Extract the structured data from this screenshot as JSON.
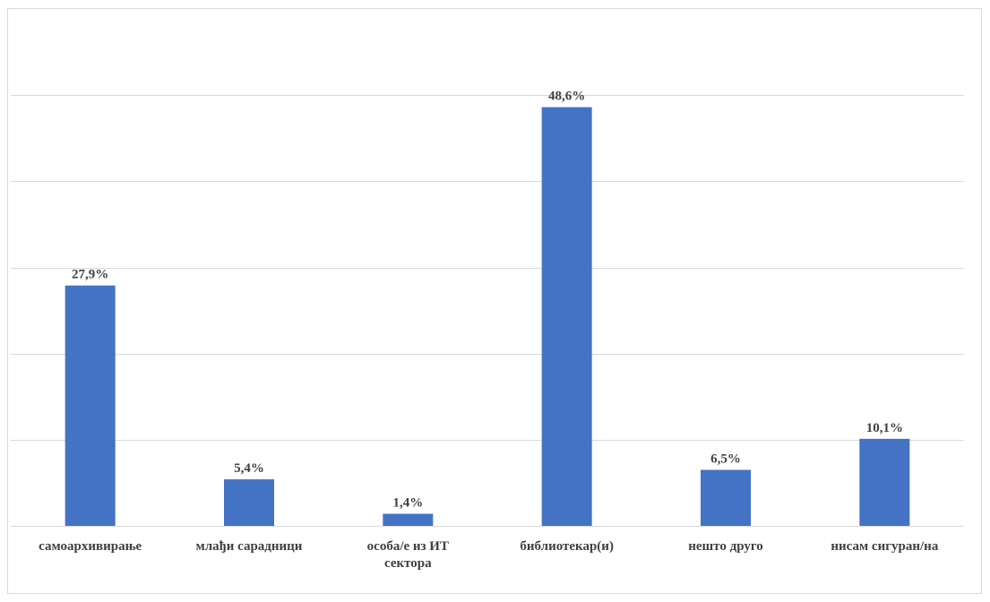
{
  "chart_data": {
    "type": "bar",
    "title": "",
    "xlabel": "",
    "ylabel": "",
    "categories": [
      [
        "самоархивирање"
      ],
      [
        "млађи сарадници"
      ],
      [
        "особа/е из ИТ",
        "сектора"
      ],
      [
        "библиотекар(и)"
      ],
      [
        "нешто друго"
      ],
      [
        "нисам сигуран/на"
      ]
    ],
    "values": [
      27.9,
      5.4,
      1.4,
      48.6,
      6.5,
      10.1
    ],
    "value_labels": [
      "27,9%",
      "5,4%",
      "1,4%",
      "48,6%",
      "6,5%",
      "10,1%"
    ],
    "ylim": [
      0,
      60
    ],
    "gridlines": [
      0,
      10,
      20,
      30,
      40,
      50
    ],
    "grid": true,
    "legend": "none",
    "colors": {
      "bar": "#4472C4",
      "grid": "#d9d9d9",
      "text": "#404040"
    }
  }
}
